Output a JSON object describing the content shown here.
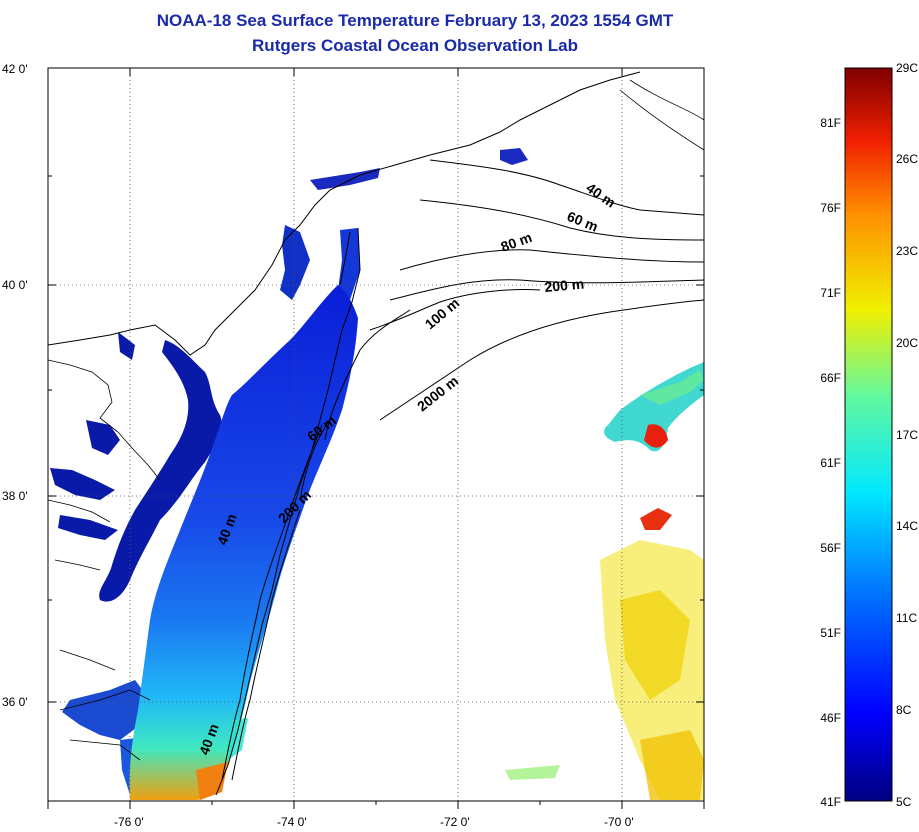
{
  "title": {
    "line1": "NOAA-18 Sea Surface Temperature February 13, 2023 1554 GMT",
    "line2": "Rutgers Coastal Ocean Observation Lab"
  },
  "map": {
    "lat_ticks": [
      {
        "value": 42,
        "label": "42 0'"
      },
      {
        "value": 40,
        "label": "40 0'"
      },
      {
        "value": 38,
        "label": "38 0'"
      },
      {
        "value": 36,
        "label": "36 0'"
      }
    ],
    "lon_ticks": [
      {
        "value": -76,
        "label": "-76 0'"
      },
      {
        "value": -74,
        "label": "-74 0'"
      },
      {
        "value": -72,
        "label": "-72 0'"
      },
      {
        "value": -70,
        "label": "-70 0'"
      }
    ],
    "lat_range": [
      35.0,
      42.0
    ],
    "lon_range": [
      -77.0,
      -69.0
    ],
    "grid": "dotted",
    "isobath_labels": [
      "40 m",
      "60 m",
      "80 m",
      "200 m",
      "100 m",
      "2000 m",
      "60 m",
      "200 m",
      "40 m",
      "40 m"
    ],
    "land_color": "#ffffff",
    "coast_color": "#000000"
  },
  "colorbar": {
    "fahrenheit": [
      "81F",
      "76F",
      "71F",
      "66F",
      "61F",
      "56F",
      "51F",
      "46F",
      "41F"
    ],
    "celsius": [
      "29C",
      "26C",
      "23C",
      "20C",
      "17C",
      "14C",
      "11C",
      "8C",
      "5C"
    ],
    "min_c": 5,
    "max_c": 29,
    "colors": [
      "#000080",
      "#0000ff",
      "#0080ff",
      "#00ffff",
      "#80ff80",
      "#ffff00",
      "#ff8000",
      "#ff0000",
      "#800000"
    ]
  }
}
